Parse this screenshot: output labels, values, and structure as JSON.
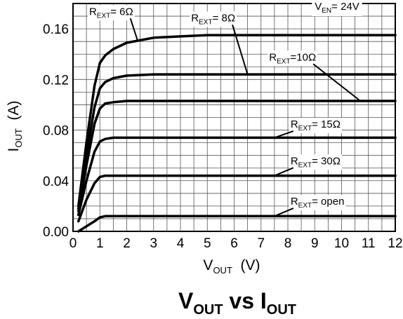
{
  "chart_data": {
    "type": "line",
    "title": {
      "main": "V",
      "main_sub": "OUT",
      "mid": " vs I",
      "end_sub": "OUT"
    },
    "xlabel": {
      "main": "V",
      "sub": "OUT",
      "unit": "  (V)"
    },
    "ylabel": {
      "main": "I",
      "sub": "OUT",
      "unit": "  (A)"
    },
    "xlim": [
      0,
      12
    ],
    "ylim": [
      0,
      0.18
    ],
    "x_ticks": [
      "0",
      "1",
      "2",
      "3",
      "4",
      "5",
      "6",
      "7",
      "8",
      "9",
      "10",
      "11",
      "12"
    ],
    "y_ticks": [
      "0.00",
      "0.04",
      "0.08",
      "0.12",
      "0.16"
    ],
    "grid": true,
    "condition": {
      "main": "V",
      "sub": "EN",
      "value": "= 24V"
    },
    "series": [
      {
        "name_main": "R",
        "name_sub": "EXT",
        "name_value": "= 6Ω",
        "x": [
          0.2,
          0.5,
          0.8,
          1.0,
          1.2,
          1.5,
          2.0,
          3.0,
          4.0,
          5.0,
          6.0,
          12.0
        ],
        "y": [
          0.02,
          0.07,
          0.115,
          0.133,
          0.139,
          0.144,
          0.149,
          0.153,
          0.154,
          0.155,
          0.155,
          0.155
        ]
      },
      {
        "name_main": "R",
        "name_sub": "EXT",
        "name_value": "= 8Ω",
        "x": [
          0.2,
          0.5,
          0.8,
          1.0,
          1.2,
          1.5,
          2.0,
          3.0,
          4.0,
          5.0,
          6.0,
          12.0
        ],
        "y": [
          0.018,
          0.06,
          0.098,
          0.113,
          0.118,
          0.121,
          0.123,
          0.124,
          0.124,
          0.124,
          0.124,
          0.124
        ]
      },
      {
        "name_main": "R",
        "name_sub": "EXT",
        "name_value": "=10Ω",
        "x": [
          0.2,
          0.5,
          0.8,
          1.0,
          1.2,
          1.5,
          2.0,
          3.0,
          4.0,
          12.0
        ],
        "y": [
          0.016,
          0.052,
          0.085,
          0.097,
          0.101,
          0.102,
          0.103,
          0.103,
          0.103,
          0.103
        ]
      },
      {
        "name_main": "R",
        "name_sub": "EXT",
        "name_value": "= 15Ω",
        "x": [
          0.2,
          0.5,
          0.8,
          1.0,
          1.2,
          1.5,
          2.0,
          12.0
        ],
        "y": [
          0.013,
          0.04,
          0.063,
          0.071,
          0.073,
          0.074,
          0.074,
          0.074
        ]
      },
      {
        "name_main": "R",
        "name_sub": "EXT",
        "name_value": "= 30Ω",
        "x": [
          0.2,
          0.5,
          0.8,
          1.0,
          1.2,
          1.5,
          12.0
        ],
        "y": [
          0.008,
          0.025,
          0.038,
          0.043,
          0.044,
          0.044,
          0.044
        ]
      },
      {
        "name_main": "R",
        "name_sub": "EXT",
        "name_value": "= open",
        "x": [
          0.2,
          0.5,
          0.8,
          1.0,
          1.2,
          12.0
        ],
        "y": [
          0.0,
          0.004,
          0.008,
          0.011,
          0.012,
          0.012
        ]
      }
    ],
    "annotations": [
      {
        "series_index": 0,
        "label_pos": [
          0.6,
          0.171
        ],
        "point": [
          2.4,
          0.151
        ]
      },
      {
        "series_index": 1,
        "label_pos": [
          4.4,
          0.166
        ],
        "point": [
          6.5,
          0.124
        ]
      },
      {
        "series_index": 2,
        "label_pos": [
          7.3,
          0.135
        ],
        "point": [
          10.7,
          0.103
        ]
      },
      {
        "series_index": 3,
        "label_pos": [
          8.1,
          0.082
        ],
        "point": [
          7.5,
          0.074
        ]
      },
      {
        "series_index": 4,
        "label_pos": [
          8.1,
          0.053
        ],
        "point": [
          7.5,
          0.044
        ]
      },
      {
        "series_index": 5,
        "label_pos": [
          8.1,
          0.021
        ],
        "point": [
          7.5,
          0.012
        ]
      }
    ],
    "condition_pos": [
      9.0,
      0.175
    ]
  }
}
